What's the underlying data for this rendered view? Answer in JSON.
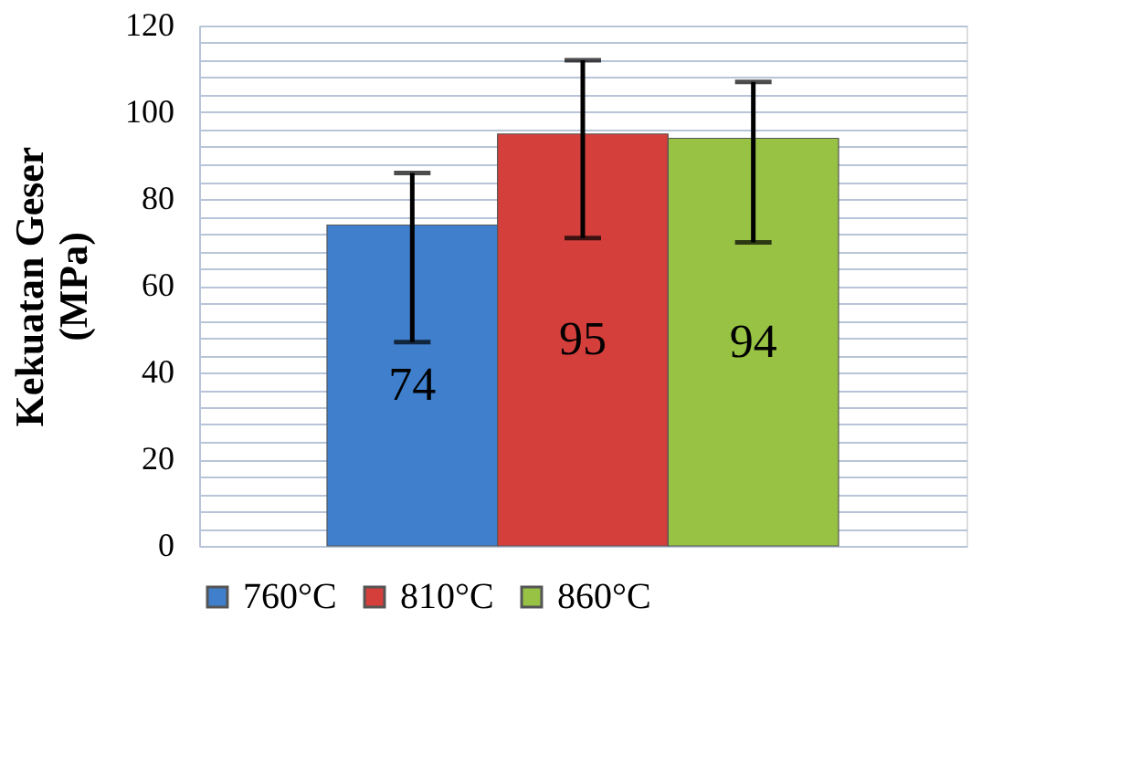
{
  "chart_data": {
    "type": "bar",
    "ylabel": "Kekuatan Geser\n(MPa)",
    "categories": [
      null
    ],
    "series": [
      {
        "name": "760°C",
        "color": "#3f7fcc",
        "values": [
          74
        ],
        "errors": [
          [
            47,
            86
          ]
        ]
      },
      {
        "name": "810°C",
        "color": "#d43f3c",
        "values": [
          95
        ],
        "errors": [
          [
            71,
            112
          ]
        ]
      },
      {
        "name": "860°C",
        "color": "#98c244",
        "values": [
          94
        ],
        "errors": [
          [
            70,
            107
          ]
        ]
      }
    ],
    "ylim": [
      0,
      120
    ],
    "yticks": [
      0,
      {
        "value": 4,
        "label": null
      },
      {
        "value": 8,
        "label": null
      },
      {
        "value": 12,
        "label": null
      },
      {
        "value": 16,
        "label": null
      },
      20,
      {
        "value": 24,
        "label": null
      },
      {
        "value": 28,
        "label": null
      },
      {
        "value": 32,
        "label": null
      },
      {
        "value": 36,
        "label": null
      },
      40,
      {
        "value": 44,
        "label": null
      },
      {
        "value": 48,
        "label": null
      },
      {
        "value": 52,
        "label": null
      },
      {
        "value": 56,
        "label": null
      },
      60,
      {
        "value": 64,
        "label": null
      },
      {
        "value": 68,
        "label": null
      },
      {
        "value": 72,
        "label": null
      },
      {
        "value": 76,
        "label": null
      },
      80,
      {
        "value": 84,
        "label": null
      },
      {
        "value": 88,
        "label": null
      },
      {
        "value": 92,
        "label": null
      },
      {
        "value": 96,
        "label": null
      },
      100,
      {
        "value": 104,
        "label": null
      },
      {
        "value": 108,
        "label": null
      },
      {
        "value": 112,
        "label": null
      },
      {
        "value": 116,
        "label": null
      },
      120
    ],
    "grid": "y",
    "legend": "bottom",
    "data_labels": true
  }
}
